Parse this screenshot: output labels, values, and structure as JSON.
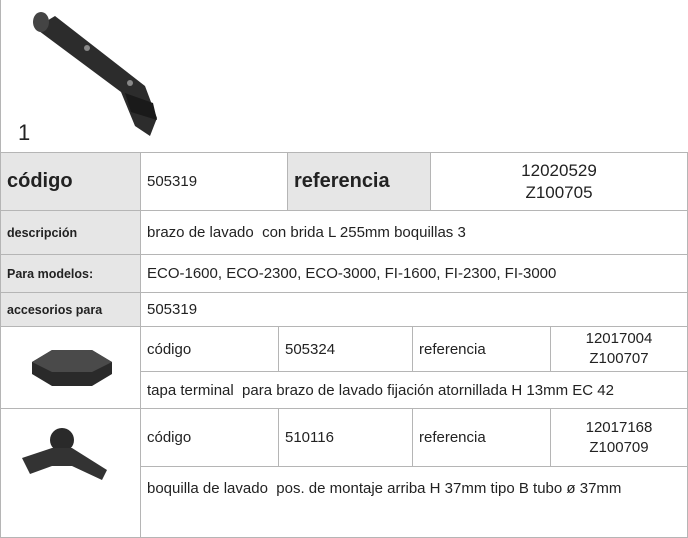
{
  "header": {
    "figure_label": "1"
  },
  "product": {
    "code_label": "código",
    "code": "505319",
    "reference_label": "referencia",
    "reference": [
      "12020529",
      "Z100705"
    ],
    "description_label": "descripción",
    "description": "brazo de lavado  con brida L 255mm boquillas 3",
    "models_label": "Para modelos:",
    "models": "ECO-1600, ECO-2300, ECO-3000, FI-1600, FI-2300, FI-3000",
    "accessories_label": "accesorios para",
    "accessories_for": "505319"
  },
  "accessories": [
    {
      "code_label": "código",
      "code": "505324",
      "reference_label": "referencia",
      "reference": [
        "12017004",
        "Z100707"
      ],
      "description": "tapa terminal  para brazo de lavado fijación atornillada H 13mm EC 42"
    },
    {
      "code_label": "código",
      "code": "510116",
      "reference_label": "referencia",
      "reference": [
        "12017168",
        "Z100709"
      ],
      "description": "boquilla de lavado  pos. de montaje arriba H 37mm tipo B tubo ø 37mm"
    }
  ]
}
